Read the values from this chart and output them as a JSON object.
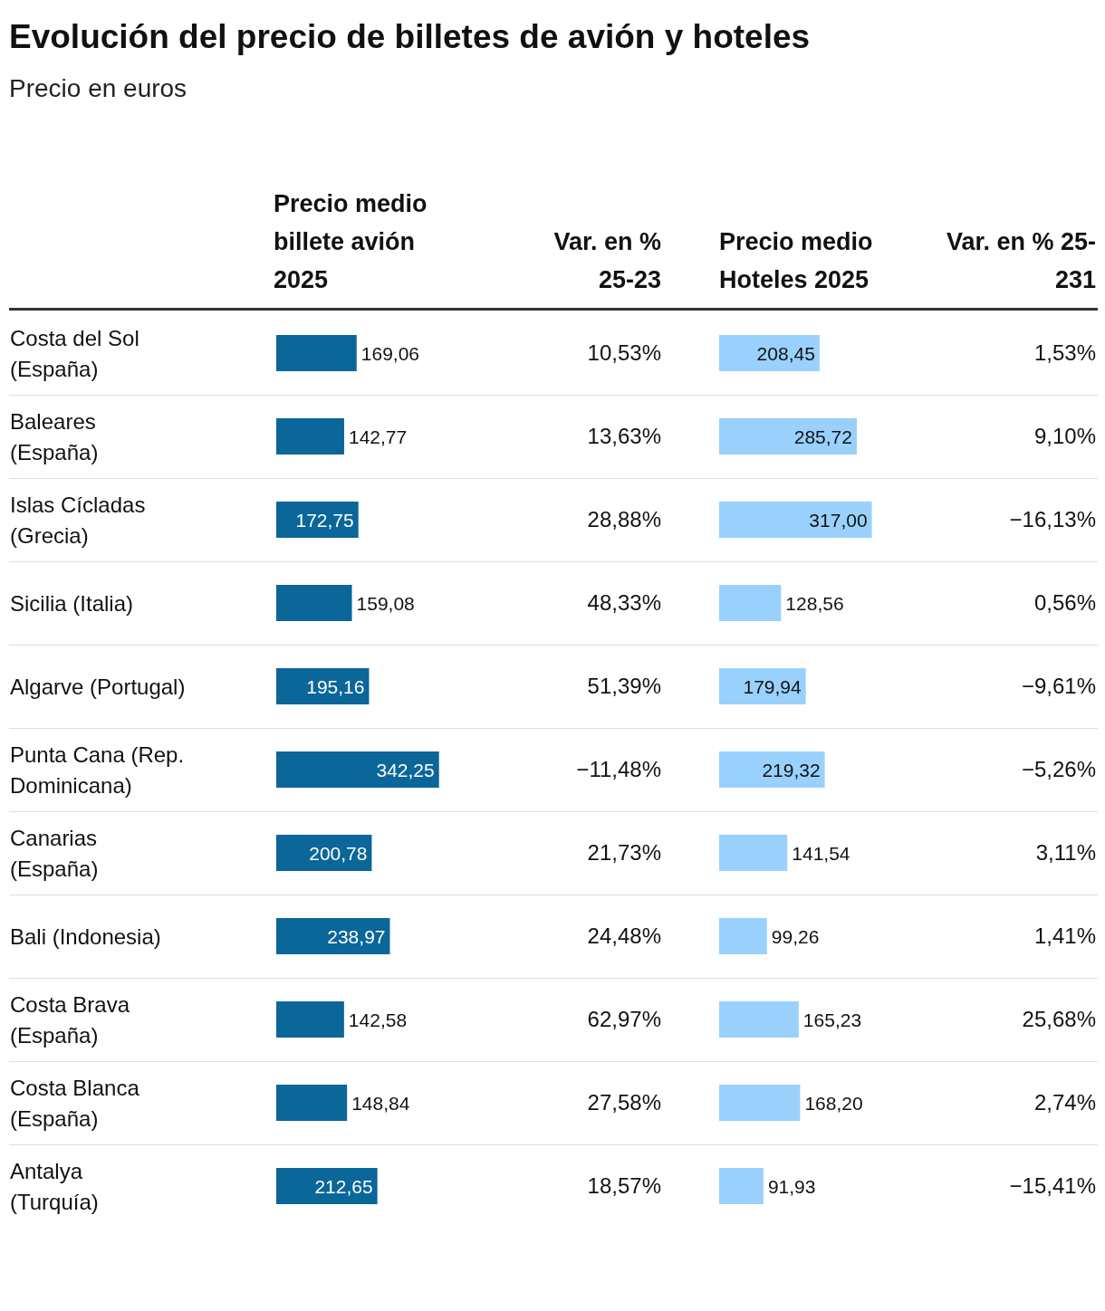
{
  "chart_data": [
    {
      "type": "bar",
      "orientation": "horizontal",
      "title": "Evolución del precio de billetes de avión y hoteles",
      "subtitle": "Precio en euros",
      "xlabel": "Precio medio billete avión 2025",
      "categories": [
        "Costa del Sol (España)",
        "Baleares (España)",
        "Islas Cícladas (Grecia)",
        "Sicilia (Italia)",
        "Algarve (Portugal)",
        "Punta Cana (Rep. Dominicana)",
        "Canarias (España)",
        "Bali (Indonesia)",
        "Costa Brava (España)",
        "Costa Blanca (España)",
        "Antalya (Turquía)"
      ],
      "values": [
        169.06,
        142.77,
        172.75,
        159.08,
        195.16,
        342.25,
        200.78,
        238.97,
        142.58,
        148.84,
        212.65
      ],
      "color": "#0b6699",
      "value_labels": [
        "169,06",
        "142,77",
        "172,75",
        "159,08",
        "195,16",
        "342,25",
        "200,78",
        "238,97",
        "142,58",
        "148,84",
        "212,65"
      ],
      "tick_labels": "y"
    },
    {
      "type": "other",
      "title": "Var. en % 25-23",
      "annotations": [
        "10,53%",
        "13,63%",
        "28,88%",
        "48,33%",
        "51,39%",
        "−11,48%",
        "21,73%",
        "24,48%",
        "62,97%",
        "27,58%",
        "18,57%"
      ]
    },
    {
      "type": "bar",
      "orientation": "horizontal",
      "xlabel": "Precio medio Hoteles 2025",
      "categories": [
        "Costa del Sol (España)",
        "Baleares (España)",
        "Islas Cícladas (Grecia)",
        "Sicilia (Italia)",
        "Algarve (Portugal)",
        "Punta Cana (Rep. Dominicana)",
        "Canarias (España)",
        "Bali (Indonesia)",
        "Costa Brava (España)",
        "Costa Blanca (España)",
        "Antalya (Turquía)"
      ],
      "values": [
        208.45,
        285.72,
        317.0,
        128.56,
        179.94,
        219.32,
        141.54,
        99.26,
        165.23,
        168.2,
        91.93
      ],
      "color": "#99d1fc",
      "value_labels": [
        "208,45",
        "285,72",
        "317,00",
        "128,56",
        "179,94",
        "219,32",
        "141,54",
        "99,26",
        "165,23",
        "168,20",
        "91,93"
      ],
      "tick_labels": false
    },
    {
      "type": "other",
      "title": "Var. en % 25-231",
      "annotations": [
        "1,53%",
        "9,10%",
        "−16,13%",
        "0,56%",
        "−9,61%",
        "−5,26%",
        "3,11%",
        "1,41%",
        "25,68%",
        "2,74%",
        "−15,41%"
      ]
    }
  ]
}
